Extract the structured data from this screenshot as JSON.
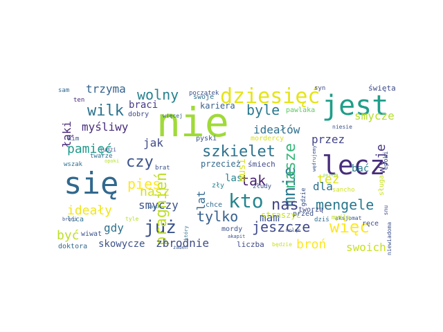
{
  "words": [
    {
      "text": "nie",
      "color": "#a0da39",
      "rotate": 0
    },
    {
      "text": "się",
      "color": "#31688e",
      "rotate": 0
    },
    {
      "text": "jest",
      "color": "#1f9e89",
      "rotate": 0
    },
    {
      "text": "lecz",
      "color": "#472d7b",
      "rotate": 0
    },
    {
      "text": "dziesięć",
      "color": "#e5e419",
      "rotate": 0
    },
    {
      "text": "kto",
      "color": "#25858e",
      "rotate": 0
    },
    {
      "text": "już",
      "color": "#3b528b",
      "rotate": 0
    },
    {
      "text": "więc",
      "color": "#fde725",
      "rotate": 0
    },
    {
      "text": "szkielet",
      "color": "#2c728e",
      "rotate": 0
    },
    {
      "text": "pragnień",
      "color": "#bddf26",
      "rotate": 90
    },
    {
      "text": "mnie",
      "color": "#2a788e",
      "rotate": 90
    },
    {
      "text": "nasze",
      "color": "#35b779",
      "rotate": 90
    },
    {
      "text": "nas",
      "color": "#414487",
      "rotate": 0
    },
    {
      "text": "mengele",
      "color": "#2a788e",
      "rotate": 0
    },
    {
      "text": "wolny",
      "color": "#26828e",
      "rotate": 0
    },
    {
      "text": "tylko",
      "color": "#355f8d",
      "rotate": 0
    },
    {
      "text": "jeszcze",
      "color": "#3e4a89",
      "rotate": 0
    },
    {
      "text": "pies",
      "color": "#fde725",
      "rotate": 0
    },
    {
      "text": "czy",
      "color": "#3b528b",
      "rotate": 0
    },
    {
      "text": "wilk",
      "color": "#2c728e",
      "rotate": 0
    },
    {
      "text": "tak",
      "color": "#481f70",
      "rotate": 0
    },
    {
      "text": "byle",
      "color": "#2a788e",
      "rotate": 0
    },
    {
      "text": "trzyma",
      "color": "#33638d",
      "rotate": 0
    },
    {
      "text": "ideałów",
      "color": "#2e6f8e",
      "rotate": 0
    },
    {
      "text": "wyje",
      "color": "#46327e",
      "rotate": 90
    },
    {
      "text": "smycze",
      "color": "#b5de2b",
      "rotate": 0
    },
    {
      "text": "pamięć",
      "color": "#1f9a8a",
      "rotate": 0
    },
    {
      "text": "ideały",
      "color": "#f1e51d",
      "rotate": 0
    },
    {
      "text": "nasz",
      "color": "#d0e11c",
      "rotate": 0
    },
    {
      "text": "myśliwy",
      "color": "#472d7b",
      "rotate": 0
    },
    {
      "text": "jak",
      "color": "#3e4a89",
      "rotate": 0
    },
    {
      "text": "przez",
      "color": "#414487",
      "rotate": 0
    },
    {
      "text": "też",
      "color": "#dde318",
      "rotate": 0
    },
    {
      "text": "dla",
      "color": "#2c728e",
      "rotate": 0
    },
    {
      "text": "mam",
      "color": "#3b528b",
      "rotate": 0
    },
    {
      "text": "broń",
      "color": "#fde725",
      "rotate": 0
    },
    {
      "text": "lat",
      "color": "#31688e",
      "rotate": 90
    },
    {
      "text": "las",
      "color": "#26828e",
      "rotate": 0
    },
    {
      "text": "smyczy",
      "color": "#3b528b",
      "rotate": 0
    },
    {
      "text": "gdy",
      "color": "#2c728e",
      "rotate": 0
    },
    {
      "text": "być",
      "color": "#bddf26",
      "rotate": 0
    },
    {
      "text": "zbrodnie",
      "color": "#3e4a89",
      "rotate": 0
    },
    {
      "text": "skowycze",
      "color": "#3b528b",
      "rotate": 0
    },
    {
      "text": "swoich",
      "color": "#c8e020",
      "rotate": 0
    },
    {
      "text": "łąki",
      "color": "#482878",
      "rotate": 90
    },
    {
      "text": "bać",
      "color": "#26828e",
      "rotate": 0
    },
    {
      "text": "musi",
      "color": "#d8e219",
      "rotate": 90
    },
    {
      "text": "braci",
      "color": "#443983",
      "rotate": 0
    },
    {
      "text": "kariera",
      "color": "#355f8d",
      "rotate": 0
    },
    {
      "text": "swoje",
      "color": "#2e6f8e",
      "rotate": 0
    },
    {
      "text": "dobry",
      "color": "#3e4a89",
      "rotate": 0
    },
    {
      "text": "pyski",
      "color": "#3b528b",
      "rotate": 0
    },
    {
      "text": "przecież",
      "color": "#31688e",
      "rotate": 0
    },
    {
      "text": "śmiech",
      "color": "#3e4a89",
      "rotate": 0
    },
    {
      "text": "straszyć",
      "color": "#c8e020",
      "rotate": 0
    },
    {
      "text": "chce",
      "color": "#31688e",
      "rotate": 0
    },
    {
      "text": "mordy",
      "color": "#3b528b",
      "rotate": 0
    },
    {
      "text": "liczba",
      "color": "#3e4a89",
      "rotate": 0
    },
    {
      "text": "doktora",
      "color": "#31688e",
      "rotate": 0
    },
    {
      "text": "lica",
      "color": "#2e6f8e",
      "rotate": 0
    },
    {
      "text": "wiwat",
      "color": "#3b528b",
      "rotate": 0
    },
    {
      "text": "twarze",
      "color": "#2e6f8e",
      "rotate": 0
    },
    {
      "text": "wszak",
      "color": "#2e6f8e",
      "rotate": 0
    },
    {
      "text": "kim",
      "color": "#3b528b",
      "rotate": 0
    },
    {
      "text": "ten",
      "color": "#482878",
      "rotate": 0
    },
    {
      "text": "sam",
      "color": "#31688e",
      "rotate": 0
    },
    {
      "text": "początek",
      "color": "#3b528b",
      "rotate": 0
    },
    {
      "text": "więcej",
      "color": "#355f8d",
      "rotate": 0
    },
    {
      "text": "pawlaka",
      "color": "#5ec962",
      "rotate": 0
    },
    {
      "text": "syn",
      "color": "#3e4a89",
      "rotate": 0
    },
    {
      "text": "święta",
      "color": "#3e4a89",
      "rotate": 0
    },
    {
      "text": "niesie",
      "color": "#3b528b",
      "rotate": 0
    },
    {
      "text": "mordercy",
      "color": "#d8e219",
      "rotate": 0
    },
    {
      "text": "wędrujemy",
      "color": "#3b528b",
      "rotate": 90
    },
    {
      "text": "pointa",
      "color": "#7ad151",
      "rotate": 0
    },
    {
      "text": "sancho",
      "color": "#d0e11c",
      "rotate": 0
    },
    {
      "text": "sługa",
      "color": "#c8e020",
      "rotate": 90
    },
    {
      "text": "epoki",
      "color": "#3b528b",
      "rotate": 90
    },
    {
      "text": "snu",
      "color": "#3e4a89",
      "rotate": 90
    },
    {
      "text": "ręce",
      "color": "#3e4a89",
      "rotate": 0
    },
    {
      "text": "aksjomat",
      "color": "#3b528b",
      "rotate": 0
    },
    {
      "text": "niewiadoma",
      "color": "#3b528b",
      "rotate": 90
    },
    {
      "text": "dziś",
      "color": "#2e6f8e",
      "rotate": 0
    },
    {
      "text": "myślą",
      "color": "#bddf26",
      "rotate": 0
    },
    {
      "text": "gdzie",
      "color": "#3b528b",
      "rotate": 90
    },
    {
      "text": "złudy",
      "color": "#3b528b",
      "rotate": 0
    },
    {
      "text": "zły",
      "color": "#26828e",
      "rotate": 0
    },
    {
      "text": "tworzą",
      "color": "#3e4a89",
      "rotate": 0
    },
    {
      "text": "przed",
      "color": "#3b528b",
      "rotate": 0
    },
    {
      "text": "mcląc",
      "color": "#3b528b",
      "rotate": 0
    },
    {
      "text": "akapit",
      "color": "#3b528b",
      "rotate": 0
    },
    {
      "text": "będzie",
      "color": "#c8e020",
      "rotate": 0
    },
    {
      "text": "żaden",
      "color": "#3b528b",
      "rotate": 0
    },
    {
      "text": "który",
      "color": "#2e6f8e",
      "rotate": 90
    },
    {
      "text": "brat",
      "color": "#3b528b",
      "rotate": 0
    },
    {
      "text": "ludzi",
      "color": "#3b528b",
      "rotate": 0
    },
    {
      "text": "opoki",
      "color": "#b5de2b",
      "rotate": 0
    },
    {
      "text": "broni",
      "color": "#3b528b",
      "rotate": 0
    },
    {
      "text": "tyle",
      "color": "#b5de2b",
      "rotate": 0
    },
    {
      "text": "smych",
      "color": "#2e6f8e",
      "rotate": 0
    }
  ]
}
